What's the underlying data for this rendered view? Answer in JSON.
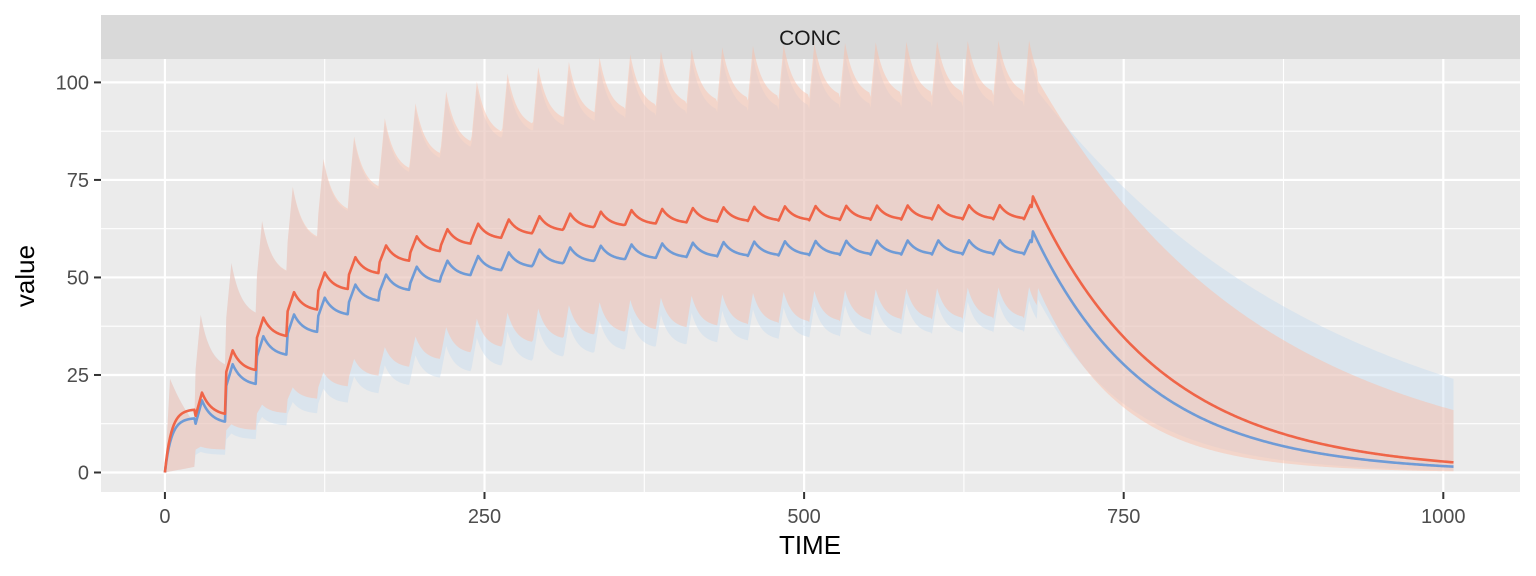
{
  "chart_data": {
    "type": "line",
    "facet_strip": "CONC",
    "xlabel": "TIME",
    "ylabel": "value",
    "xlim": [
      -50,
      1060
    ],
    "ylim": [
      -5,
      106
    ],
    "x_ticks": [
      0,
      250,
      500,
      750,
      1000
    ],
    "x_tick_labels": [
      "0",
      "250",
      "500",
      "750",
      "1000"
    ],
    "y_ticks": [
      0,
      25,
      50,
      75,
      100
    ],
    "y_tick_labels": [
      "0",
      "25",
      "50",
      "75",
      "100"
    ],
    "grid": true,
    "dosing": {
      "interval": 24,
      "n_doses": 29,
      "end": 1008
    },
    "series": [
      {
        "color": "#6f9bd6",
        "band_color": "#c6dbef",
        "median_ss_trough": 56,
        "median_ss_peak": 62.5,
        "median_end": 1.5,
        "upper_ss_peak": 98,
        "upper_end": 24,
        "lower_ss_trough": 37,
        "lower_end": 0.5
      },
      {
        "color": "#ef6548",
        "band_color": "#fcbba1",
        "median_ss_trough": 65,
        "median_ss_peak": 71.5,
        "median_end": 2.6,
        "upper_ss_peak": 101,
        "upper_end": 16,
        "lower_ss_trough": 40,
        "lower_end": 0.3
      }
    ]
  },
  "colors": {
    "panel": "#ebebeb",
    "strip": "#d9d9d9",
    "grid": "#ffffff"
  }
}
